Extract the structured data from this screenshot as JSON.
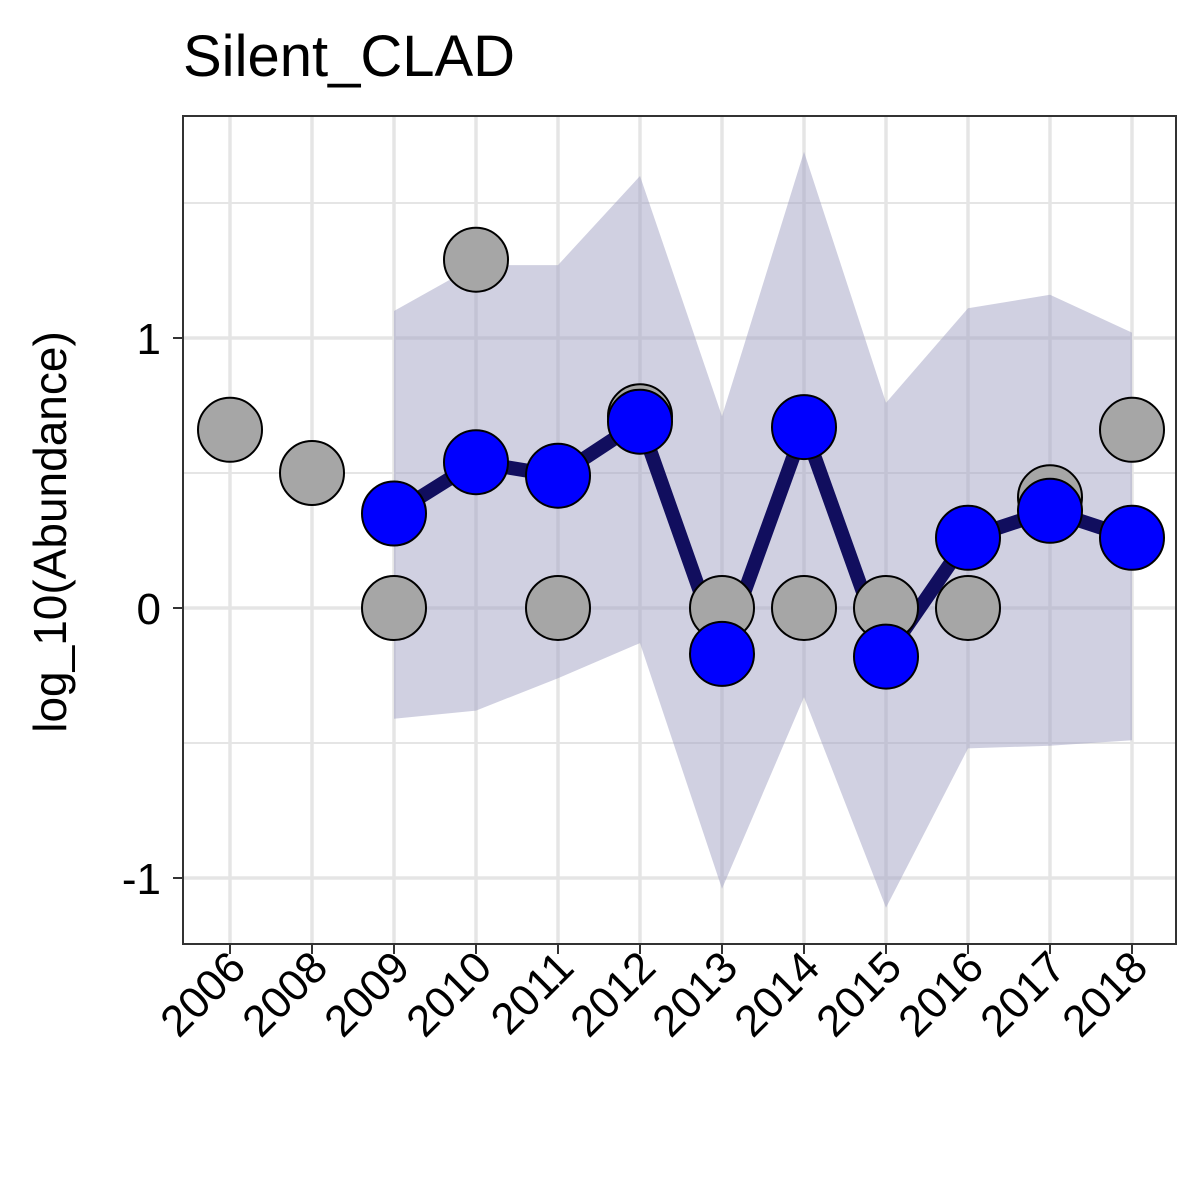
{
  "chart_data": {
    "type": "line",
    "title": "Silent_CLAD",
    "xlabel": "",
    "ylabel": "log_10(Abundance)",
    "categories": [
      "2006",
      "2008",
      "2009",
      "2010",
      "2011",
      "2012",
      "2013",
      "2014",
      "2015",
      "2016",
      "2017",
      "2018"
    ],
    "ylim": [
      -1.25,
      1.82
    ],
    "yticks": [
      -1,
      0,
      1
    ],
    "ytick_labels": [
      "-1",
      "0",
      "1"
    ],
    "grid": true,
    "legend": "none",
    "observed": [
      {
        "x": "2006",
        "y": 0.66
      },
      {
        "x": "2008",
        "y": 0.5
      },
      {
        "x": "2009",
        "y": 0.0
      },
      {
        "x": "2010",
        "y": 1.29
      },
      {
        "x": "2011",
        "y": 0.0
      },
      {
        "x": "2012",
        "y": 0.71
      },
      {
        "x": "2013",
        "y": 0.0
      },
      {
        "x": "2014",
        "y": 0.0
      },
      {
        "x": "2015",
        "y": 0.0
      },
      {
        "x": "2016",
        "y": 0.0
      },
      {
        "x": "2017",
        "y": 0.41
      },
      {
        "x": "2018",
        "y": 0.66
      }
    ],
    "fitted": {
      "x": [
        "2009",
        "2010",
        "2011",
        "2012",
        "2013",
        "2014",
        "2015",
        "2016",
        "2017",
        "2018"
      ],
      "y": [
        0.35,
        0.54,
        0.49,
        0.69,
        -0.17,
        0.67,
        -0.18,
        0.26,
        0.36,
        0.26
      ],
      "lower": [
        -0.41,
        -0.38,
        -0.26,
        -0.13,
        -1.04,
        -0.33,
        -1.11,
        -0.52,
        -0.51,
        -0.49
      ],
      "upper": [
        1.1,
        1.27,
        1.27,
        1.6,
        0.71,
        1.69,
        0.76,
        1.11,
        1.16,
        1.02
      ]
    },
    "colors": {
      "observed_fill": "#a6a6a6",
      "fitted_fill": "#0000ff",
      "line": "#110e5e",
      "ribbon": "#a1a1c4",
      "grid": "#e5e5e5",
      "panel_border": "#333333"
    }
  }
}
